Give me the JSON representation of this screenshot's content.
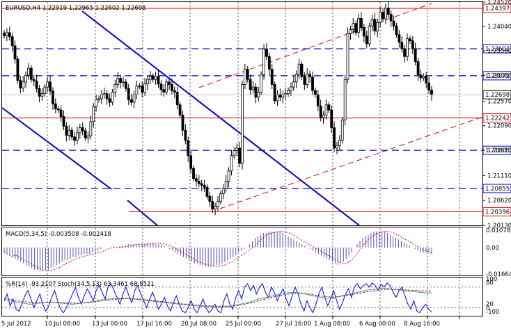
{
  "symbol_header": "EURUSD,H4  1.22919 1.22965 1.22602 1.22698",
  "colors": {
    "bull": "#000000",
    "bear": "#000000",
    "red": "#e00000",
    "blue": "#0000c8",
    "grid": "#000000",
    "hist": "#5050c0",
    "signal": "#e00000",
    "wpr": "#0000ff",
    "stoch_main": "#20a0a0",
    "stoch_sig": "#e00000"
  },
  "price_axis": {
    "levels": [
      "1.24520",
      "1.24040",
      "1.23560",
      "1.23080",
      "1.22570",
      "1.22090",
      "1.21610",
      "1.21110",
      "1.20620",
      "1.20130"
    ],
    "current": "1.22698"
  },
  "horizontal_lines": [
    {
      "price": "1.24397",
      "style": "solid",
      "color": "red"
    },
    {
      "price": "1.23602",
      "style": "dashed",
      "color": "blue"
    },
    {
      "price": "1.23072",
      "style": "dashed",
      "color": "blue"
    },
    {
      "price": "1.22242",
      "style": "solid",
      "color": "red"
    },
    {
      "price": "1.21605",
      "style": "dashed",
      "color": "blue"
    },
    {
      "price": "1.20855",
      "style": "dashed",
      "color": "blue"
    },
    {
      "price": "1.20396",
      "style": "solid",
      "color": "red"
    }
  ],
  "macd": {
    "title": "MACD(5,34,5) -0.003508 -0.002418",
    "axis": [
      "0.010786",
      "0.00",
      "-0.016649"
    ]
  },
  "oscillators": {
    "title": "%R(14) -93.2107  Stoch(34,5,13) 63.3461 68.8521",
    "axis": [
      "100",
      "80",
      "20",
      "0",
      "-100"
    ]
  },
  "time_axis": [
    "5 Jul 2012",
    "10 Jul 08:00",
    "13 Jul 00:00",
    "17 Jul 16:00",
    "20 Jul 08:00",
    "25 Jul 00:00",
    "27 Jul 16:00",
    "1 Aug 08:00",
    "6 Aug 00:00",
    "8 Aug 16:00"
  ],
  "chart_data": {
    "type": "candlestick",
    "symbol": "EURUSD",
    "timeframe": "H4",
    "title": "EURUSD,H4  1.22919 1.22965 1.22602 1.22698",
    "ylim": [
      1.2013,
      1.2452
    ],
    "close": [
      1.2386,
      1.2392,
      1.2384,
      1.2366,
      1.234,
      1.2298,
      1.2283,
      1.2295,
      1.2308,
      1.2322,
      1.23,
      1.2297,
      1.2282,
      1.2267,
      1.2272,
      1.2285,
      1.2295,
      1.2277,
      1.2252,
      1.2242,
      1.224,
      1.2227,
      1.2208,
      1.219,
      1.22,
      1.2187,
      1.218,
      1.2195,
      1.2205,
      1.2199,
      1.2185,
      1.2189,
      1.2217,
      1.2246,
      1.226,
      1.2262,
      1.227,
      1.2272,
      1.2262,
      1.2255,
      1.2275,
      1.229,
      1.2302,
      1.2294,
      1.2295,
      1.2282,
      1.226,
      1.2255,
      1.227,
      1.2287,
      1.2287,
      1.2275,
      1.2291,
      1.23,
      1.2306,
      1.23,
      1.2306,
      1.2291,
      1.228,
      1.2275,
      1.2295,
      1.229,
      1.2278,
      1.2275,
      1.225,
      1.223,
      1.22,
      1.218,
      1.215,
      1.2125,
      1.2105,
      1.21,
      1.2095,
      1.2092,
      1.2088,
      1.207,
      1.206,
      1.2045,
      1.205,
      1.206,
      1.2075,
      1.2085,
      1.21,
      1.212,
      1.215,
      1.216,
      1.2165,
      1.2135,
      1.229,
      1.232,
      1.23,
      1.228,
      1.2285,
      1.2265,
      1.2275,
      1.231,
      1.236,
      1.2345,
      1.232,
      1.229,
      1.2258,
      1.227,
      1.2265,
      1.227,
      1.2272,
      1.2278,
      1.2285,
      1.2295,
      1.231,
      1.233,
      1.2305,
      1.229,
      1.231,
      1.2305,
      1.2278,
      1.227,
      1.2248,
      1.2225,
      1.223,
      1.225,
      1.224,
      1.2205,
      1.2165,
      1.217,
      1.218,
      1.222,
      1.23,
      1.239,
      1.2398,
      1.241,
      1.2392,
      1.242,
      1.2402,
      1.2385,
      1.237,
      1.2405,
      1.2418,
      1.2395,
      1.2412,
      1.2432,
      1.2419,
      1.244,
      1.2428,
      1.2415,
      1.2405,
      1.2388,
      1.2373,
      1.236,
      1.2345,
      1.238,
      1.2376,
      1.236,
      1.2335,
      1.2309,
      1.2303,
      1.2306,
      1.2293,
      1.2279,
      1.227
    ]
  },
  "indicator_data": {
    "macd_hist": [
      -0.003,
      -0.004,
      -0.005,
      -0.006,
      -0.007,
      -0.008,
      -0.009,
      -0.01,
      -0.011,
      -0.012,
      -0.013,
      -0.014,
      -0.014,
      -0.015,
      -0.015,
      -0.014,
      -0.014,
      -0.013,
      -0.012,
      -0.011,
      -0.01,
      -0.009,
      -0.008,
      -0.008,
      -0.007,
      -0.006,
      -0.006,
      -0.005,
      -0.005,
      -0.004,
      -0.004,
      -0.004,
      -0.003,
      -0.003,
      -0.002,
      -0.001,
      0.0,
      0.0,
      0.0,
      0.0,
      0.0,
      0.0,
      0.001,
      0.001,
      0.001,
      0.002,
      0.002,
      0.002,
      0.002,
      0.002,
      0.002,
      0.002,
      0.003,
      0.003,
      0.003,
      0.002,
      0.002,
      0.002,
      0.001,
      0.0,
      -0.001,
      -0.002,
      -0.003,
      -0.004,
      -0.005,
      -0.006,
      -0.007,
      -0.008,
      -0.009,
      -0.01,
      -0.01,
      -0.011,
      -0.011,
      -0.012,
      -0.012,
      -0.012,
      -0.012,
      -0.011,
      -0.011,
      -0.01,
      -0.009,
      -0.008,
      -0.007,
      -0.006,
      -0.005,
      -0.003,
      -0.002,
      -0.001,
      0.0,
      0.002,
      0.004,
      0.006,
      0.007,
      0.008,
      0.009,
      0.009,
      0.01,
      0.01,
      0.01,
      0.01,
      0.01,
      0.009,
      0.008,
      0.007,
      0.006,
      0.005,
      0.004,
      0.003,
      0.002,
      0.001,
      0.0,
      -0.001,
      -0.002,
      -0.003,
      -0.004,
      -0.005,
      -0.006,
      -0.007,
      -0.008,
      -0.009,
      -0.01,
      -0.011,
      -0.01,
      -0.009,
      -0.007,
      -0.005,
      -0.003,
      0.0,
      0.002,
      0.004,
      0.006,
      0.007,
      0.008,
      0.009,
      0.01,
      0.01,
      0.01,
      0.01,
      0.01,
      0.009,
      0.008,
      0.007,
      0.006,
      0.005,
      0.004,
      0.003,
      0.002,
      0.001,
      0.0,
      -0.001,
      -0.002,
      -0.003,
      -0.003,
      -0.003,
      -0.003,
      -0.004
    ],
    "wpr": [
      -60,
      -40,
      -75,
      -55,
      -85,
      -90,
      -70,
      -45,
      -30,
      -55,
      -80,
      -60,
      -40,
      -70,
      -90,
      -75,
      -50,
      -30,
      -60,
      -85,
      -95,
      -80,
      -60,
      -40,
      -20,
      -50,
      -70,
      -45,
      -25,
      -40,
      -60,
      -30,
      -15,
      -35,
      -55,
      -20,
      -10,
      -30,
      -50,
      -70,
      -40,
      -20,
      -45,
      -65,
      -30,
      -15,
      -40,
      -60,
      -80,
      -55,
      -35,
      -60,
      -85,
      -70,
      -50,
      -75,
      -90,
      -65,
      -45,
      -70,
      -90,
      -95,
      -80,
      -60,
      -85,
      -95,
      -75,
      -55,
      -80,
      -95,
      -85,
      -70,
      -90,
      -95,
      -60,
      -40,
      -70,
      -85,
      -50,
      -30,
      -55,
      -20,
      -10,
      -30,
      -15,
      -40,
      -20,
      -10,
      -35,
      -50,
      -20,
      -35,
      -60,
      -40,
      -25,
      -55,
      -75,
      -45,
      -20,
      -40,
      -70,
      -90,
      -60,
      -80,
      -95,
      -70,
      -40,
      -20,
      -50,
      -75,
      -55,
      -30,
      -60,
      -85,
      -65,
      -40,
      -25,
      -50,
      -20,
      -10,
      -25,
      -15,
      -10,
      -20,
      -8,
      -15,
      -30,
      -12,
      -20,
      -8,
      -15,
      -35,
      -50,
      -30,
      -20,
      -45,
      -70,
      -85,
      -60,
      -90,
      -95,
      -80,
      -70,
      -85,
      -93
    ],
    "stoch_main": [
      45,
      42,
      40,
      38,
      36,
      35,
      33,
      32,
      30,
      30,
      31,
      32,
      33,
      34,
      35,
      36,
      36,
      35,
      34,
      33,
      32,
      31,
      30,
      30,
      31,
      32,
      33,
      35,
      36,
      37,
      38,
      40,
      42,
      43,
      44,
      45,
      46,
      47,
      48,
      48,
      48,
      47,
      46,
      45,
      44,
      43,
      42,
      41,
      40,
      39,
      38,
      37,
      36,
      35,
      34,
      33,
      32,
      31,
      30,
      29,
      28,
      28,
      27,
      26,
      25,
      25,
      24,
      24,
      23,
      23,
      22,
      22,
      22,
      22,
      23,
      24,
      25,
      27,
      29,
      31,
      33,
      35,
      37,
      40,
      43,
      46,
      48,
      50,
      52,
      54,
      56,
      58,
      60,
      62,
      63,
      64,
      64,
      64,
      63,
      62,
      60,
      58,
      56,
      54,
      52,
      50,
      49,
      48,
      48,
      49,
      50,
      52,
      54,
      56,
      58,
      60,
      62,
      64,
      66,
      68,
      70,
      72,
      73,
      74,
      75,
      76,
      76,
      76,
      75,
      74,
      73,
      72,
      71,
      70,
      69,
      68,
      67,
      66,
      65,
      64,
      63,
      63,
      63
    ],
    "stoch_signal": [
      48,
      46,
      44,
      42,
      40,
      39,
      38,
      37,
      36,
      35,
      35,
      35,
      35,
      35,
      35,
      36,
      36,
      36,
      35,
      35,
      34,
      34,
      33,
      33,
      33,
      33,
      34,
      34,
      35,
      36,
      37,
      38,
      39,
      40,
      41,
      42,
      43,
      44,
      45,
      46,
      46,
      46,
      46,
      46,
      45,
      45,
      44,
      43,
      42,
      41,
      40,
      39,
      38,
      37,
      36,
      35,
      34,
      33,
      32,
      31,
      30,
      30,
      29,
      28,
      27,
      27,
      26,
      26,
      25,
      25,
      24,
      24,
      24,
      24,
      24,
      24,
      25,
      26,
      27,
      28,
      30,
      32,
      34,
      36,
      38,
      41,
      43,
      46,
      48,
      50,
      52,
      54,
      56,
      58,
      59,
      60,
      61,
      62,
      62,
      62,
      61,
      60,
      59,
      57,
      56,
      55,
      53,
      52,
      51,
      51,
      51,
      52,
      53,
      54,
      56,
      57,
      59,
      61,
      62,
      64,
      65,
      67,
      68,
      70,
      71,
      72,
      73,
      73,
      74,
      74,
      74,
      73,
      73,
      72,
      71,
      71,
      70,
      70,
      69,
      69,
      69,
      69,
      69
    ]
  }
}
